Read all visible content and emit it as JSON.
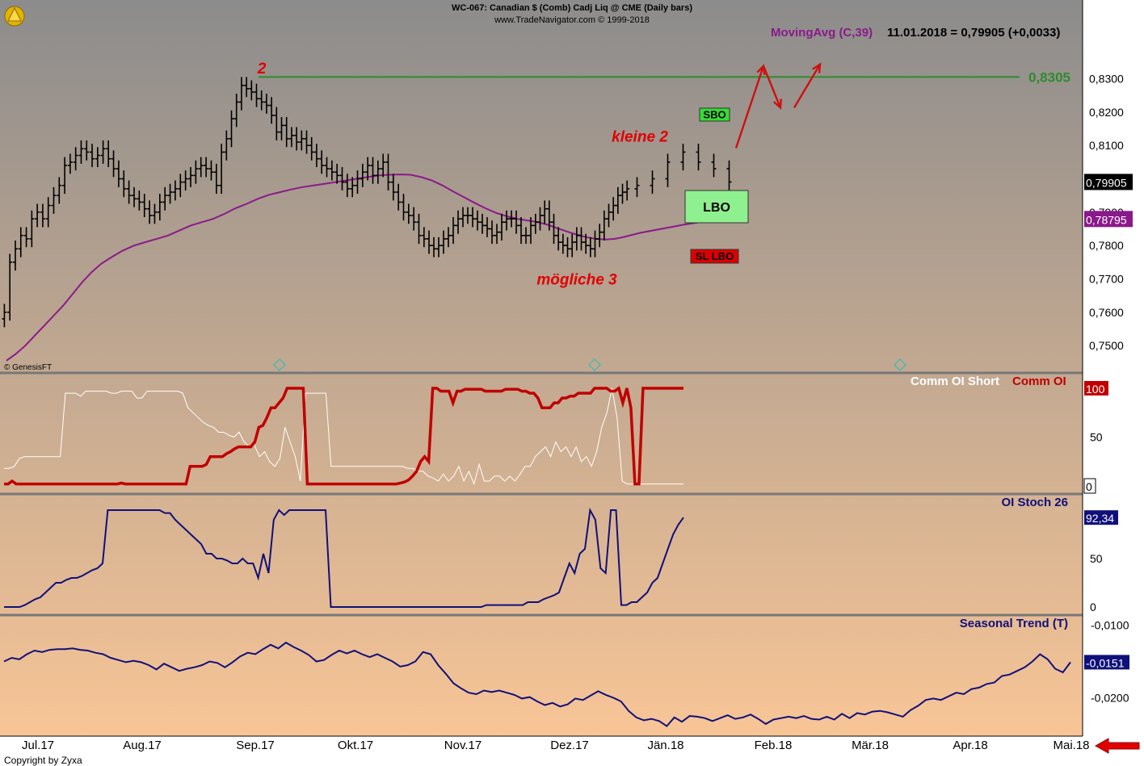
{
  "header": {
    "line1": "WC-067:  Canadian $ (Comb) Cadj Liq @ CME  (Daily bars)",
    "line2": "www.TradeNavigator.com © 1999-2018"
  },
  "footer": {
    "copyright": "Copyright by Zyxa",
    "genesis": "© GenesisFT"
  },
  "colors": {
    "bg_top": "#8c8c8c",
    "bg_bottom": "#f8c596",
    "grid_separator": "#787878",
    "ma_line": "#8a1a8a",
    "resistance_line": "#2e8b2e",
    "comm_oi": "#c00000",
    "comm_oi_short": "#ffffff",
    "oi_stoch": "#10107a",
    "seasonal": "#10107a",
    "annotation_red": "#e00000",
    "sbo_green": "#33dd33",
    "lbo_green": "#8ef08e",
    "sl_red": "#dd0000",
    "price_axis_label": "#000000"
  },
  "chart_data": [
    {
      "type": "ohlc",
      "title": "WC-067:  Canadian $ (Comb) Cadj Liq @ CME  (Daily bars)",
      "xlabel": "",
      "ylabel": "",
      "x_tick_labels": [
        "Jul.17",
        "Aug.17",
        "Sep.17",
        "Okt.17",
        "Nov.17",
        "Dez.17",
        "Jän.18",
        "Feb.18",
        "Mär.18",
        "Apr.18",
        "Mai.18"
      ],
      "y_tick_labels": [
        "0,8300",
        "0,8200",
        "0,8100",
        "0,8000",
        "0,7900",
        "0,7800",
        "0,7700",
        "0,7600",
        "0,7500"
      ],
      "ylim": [
        0.7423,
        0.8427
      ],
      "note_price_box": "0,79905",
      "ma_box": "0,78795",
      "legend": "MovingAvg (C,39)",
      "readout": "11.01.2018 = 0,79905 (+0,0033)",
      "level_label": "0,8305",
      "level_value": 0.8305,
      "price_series": [
        {
          "month": "Jul.17",
          "values": [
            0.76,
            0.775,
            0.779,
            0.783,
            0.782,
            0.788,
            0.79,
            0.788,
            0.792,
            0.795,
            0.798,
            0.804,
            0.805,
            0.807,
            0.809,
            0.808,
            0.806,
            0.807,
            0.809
          ]
        },
        {
          "month": "Aug.17",
          "values": [
            0.806,
            0.803,
            0.8,
            0.797,
            0.795,
            0.794,
            0.793,
            0.791,
            0.789,
            0.79,
            0.793,
            0.795,
            0.796,
            0.797,
            0.799,
            0.8,
            0.801,
            0.803,
            0.804,
            0.803,
            0.802,
            0.798
          ]
        },
        {
          "month": "Sep.17",
          "values": [
            0.808,
            0.812,
            0.818,
            0.823,
            0.828,
            0.827,
            0.826,
            0.824,
            0.823,
            0.822,
            0.819,
            0.814,
            0.816,
            0.812,
            0.813,
            0.811,
            0.812,
            0.81,
            0.808,
            0.806
          ]
        },
        {
          "month": "Okt.17",
          "values": [
            0.804,
            0.803,
            0.802,
            0.801,
            0.799,
            0.797,
            0.798,
            0.8,
            0.802,
            0.804,
            0.801,
            0.803,
            0.805,
            0.799,
            0.796,
            0.793,
            0.79,
            0.789,
            0.787,
            0.783,
            0.782
          ]
        },
        {
          "month": "Nov.17",
          "values": [
            0.78,
            0.779,
            0.78,
            0.782,
            0.783,
            0.786,
            0.788,
            0.789,
            0.789,
            0.788,
            0.787,
            0.786,
            0.785,
            0.783,
            0.784,
            0.787,
            0.788,
            0.788,
            0.786,
            0.783,
            0.783,
            0.786
          ]
        },
        {
          "month": "Dez.17",
          "values": [
            0.787,
            0.789,
            0.791,
            0.787,
            0.783,
            0.781,
            0.78,
            0.779,
            0.781,
            0.783,
            0.781,
            0.78,
            0.779,
            0.782,
            0.784,
            0.788,
            0.79,
            0.792,
            0.795,
            0.796,
            0.797
          ]
        },
        {
          "month": "Jän.18",
          "values": [
            0.798,
            0.8,
            0.805,
            0.808,
            0.805,
            0.803,
            0.79905
          ]
        }
      ],
      "ma_series": [
        {
          "month": "Jul.17",
          "values": [
            0.7455,
            0.7475,
            0.75,
            0.753,
            0.756,
            0.759,
            0.762,
            0.7655,
            0.769,
            0.772,
            0.7745
          ]
        },
        {
          "month": "Aug.17",
          "values": [
            0.7765,
            0.7785,
            0.78,
            0.781,
            0.782,
            0.783,
            0.7845,
            0.786,
            0.787,
            0.788
          ]
        },
        {
          "month": "Sep.17",
          "values": [
            0.7895,
            0.7912,
            0.7925,
            0.794,
            0.7952,
            0.796,
            0.7968,
            0.7975,
            0.798
          ]
        },
        {
          "month": "Okt.17",
          "values": [
            0.7985,
            0.799,
            0.7995,
            0.8,
            0.8005,
            0.801,
            0.8012,
            0.8013,
            0.8012,
            0.8005
          ]
        },
        {
          "month": "Nov.17",
          "values": [
            0.7995,
            0.798,
            0.7962,
            0.7945,
            0.7928,
            0.7912,
            0.7898,
            0.7888,
            0.788,
            0.7875
          ]
        },
        {
          "month": "Dez.17",
          "values": [
            0.787,
            0.7862,
            0.7852,
            0.7842,
            0.7833,
            0.7825,
            0.782,
            0.7818,
            0.782,
            0.7826
          ]
        },
        {
          "month": "Jän.18",
          "values": [
            0.7838,
            0.785,
            0.7862,
            0.7872,
            0.78795
          ]
        }
      ],
      "annotations": [
        {
          "text": "2",
          "month": "Sep.17",
          "price": 0.8333
        },
        {
          "text": "kleine 2",
          "month": "Dez.17",
          "price": 0.8128
        },
        {
          "text": "mögliche 3",
          "month": "Dez.17",
          "price": 0.77
        }
      ],
      "boxes": [
        {
          "text": "SBO",
          "kind": "sbo"
        },
        {
          "text": "LBO",
          "kind": "lbo"
        },
        {
          "text": "SL LBO",
          "kind": "sl"
        }
      ],
      "projection_points": [
        {
          "month": "Jän.18",
          "price": 0.8092
        },
        {
          "month": "Feb.18",
          "price": 0.8338
        },
        {
          "month": "Feb.18",
          "price": 0.8213
        },
        {
          "month": "Feb.18",
          "price": 0.8343
        }
      ]
    },
    {
      "type": "line",
      "title": "",
      "legend": [
        "Comm OI Short",
        "Comm OI"
      ],
      "y_tick_labels": [
        "100",
        "50",
        "0"
      ],
      "ylim": [
        0,
        100
      ],
      "value_boxes": [
        "100",
        "0"
      ],
      "series": [
        {
          "name": "Comm OI Short",
          "values": [
            18,
            18,
            20,
            28,
            30,
            30,
            30,
            30,
            30,
            30,
            30,
            30,
            95,
            95,
            95,
            92,
            97,
            97,
            97,
            97,
            97,
            95,
            95,
            97,
            97,
            97,
            90,
            90,
            97,
            97,
            97,
            97,
            97,
            97,
            97,
            95,
            80,
            75,
            70,
            65,
            62,
            60,
            55,
            55,
            52,
            50,
            55,
            45,
            40,
            42,
            30,
            35,
            25,
            20,
            28,
            60,
            45,
            30,
            5,
            95,
            95,
            95,
            95,
            95,
            20,
            20,
            20,
            20,
            20,
            20,
            20,
            20,
            20,
            20,
            20,
            20,
            20,
            20,
            20,
            18,
            18,
            15,
            15,
            10,
            8,
            5,
            12,
            5,
            10,
            20,
            5,
            15,
            2,
            22,
            5,
            5,
            10,
            10,
            5,
            10,
            5,
            12,
            20,
            20,
            30,
            35,
            40,
            30,
            45,
            35,
            40,
            30,
            40,
            25,
            30,
            20,
            35,
            60,
            75,
            100,
            70,
            5,
            2,
            2,
            2,
            2,
            2,
            2,
            2,
            2,
            2,
            2,
            2,
            2
          ]
        },
        {
          "name": "Comm OI",
          "values": [
            2,
            2,
            5,
            2,
            2,
            2,
            2,
            2,
            2,
            2,
            2,
            2,
            2,
            2,
            2,
            2,
            2,
            2,
            2,
            2,
            2,
            2,
            2,
            2,
            2,
            2,
            2,
            2,
            2,
            3,
            2,
            2,
            2,
            2,
            2,
            2,
            2,
            2,
            2,
            2,
            2,
            2,
            2,
            2,
            2,
            2,
            20,
            20,
            20,
            20,
            22,
            30,
            30,
            30,
            30,
            33,
            35,
            38,
            40,
            40,
            40,
            40,
            45,
            60,
            62,
            70,
            80,
            80,
            85,
            90,
            100,
            100,
            100,
            100,
            100,
            2,
            2,
            2,
            2,
            2,
            2,
            2,
            2,
            2,
            2,
            2,
            2,
            2,
            2,
            2,
            2,
            2,
            2,
            2,
            2,
            2,
            2,
            2,
            3,
            4,
            6,
            10,
            15,
            25,
            30,
            25,
            100,
            100,
            97,
            97,
            97,
            85,
            97,
            97,
            99,
            99,
            99,
            99,
            99,
            97,
            97,
            97,
            97,
            97,
            99,
            99,
            99,
            99,
            97,
            97,
            95,
            95,
            90,
            80,
            80,
            80,
            85,
            85,
            90,
            90,
            92,
            92,
            95,
            95,
            95,
            95,
            100,
            100,
            100,
            100,
            97,
            97,
            100,
            85,
            100,
            80,
            2,
            2,
            100,
            100,
            100,
            100,
            100,
            100,
            100,
            100,
            100,
            100,
            100
          ]
        }
      ]
    },
    {
      "type": "line",
      "title": "",
      "legend": [
        "OI Stoch 26"
      ],
      "y_tick_labels": [
        "50",
        "0"
      ],
      "ylim": [
        0,
        100
      ],
      "value_box": "92,34",
      "series": [
        {
          "name": "OI Stoch 26",
          "values": [
            0,
            0,
            0,
            0,
            2,
            5,
            8,
            10,
            15,
            20,
            25,
            25,
            28,
            30,
            30,
            32,
            35,
            38,
            40,
            45,
            100,
            100,
            100,
            100,
            100,
            100,
            100,
            100,
            100,
            100,
            100,
            97,
            97,
            90,
            85,
            80,
            75,
            70,
            65,
            55,
            55,
            50,
            50,
            48,
            45,
            45,
            50,
            45,
            45,
            30,
            55,
            35,
            90,
            100,
            95,
            100,
            100,
            100,
            100,
            100,
            100,
            100,
            100,
            0,
            0,
            0,
            0,
            0,
            0,
            0,
            0,
            0,
            0,
            0,
            0,
            0,
            0,
            0,
            0,
            0,
            0,
            0,
            0,
            0,
            0,
            0,
            0,
            0,
            0,
            0,
            0,
            0,
            0,
            2,
            2,
            2,
            2,
            2,
            2,
            2,
            2,
            5,
            5,
            5,
            8,
            10,
            12,
            15,
            30,
            45,
            35,
            55,
            60,
            100,
            90,
            40,
            35,
            100,
            100,
            2,
            2,
            5,
            5,
            10,
            15,
            25,
            30,
            45,
            60,
            75,
            85,
            92.34
          ]
        }
      ]
    },
    {
      "type": "line",
      "title": "",
      "legend": [
        "Seasonal Trend (T)"
      ],
      "y_tick_labels": [
        "-0,0100",
        "-0,0200"
      ],
      "ylim": [
        -0.0245,
        -0.0095
      ],
      "value_box": "-0,0151",
      "series": [
        {
          "name": "Seasonal Trend (T)",
          "values": [
            -0.015,
            -0.0145,
            -0.0147,
            -0.014,
            -0.0135,
            -0.0137,
            -0.0134,
            -0.0133,
            -0.0133,
            -0.0132,
            -0.0134,
            -0.0135,
            -0.0138,
            -0.014,
            -0.0145,
            -0.0148,
            -0.0151,
            -0.0149,
            -0.0151,
            -0.0155,
            -0.0161,
            -0.0153,
            -0.0158,
            -0.0163,
            -0.016,
            -0.0158,
            -0.0155,
            -0.015,
            -0.0152,
            -0.0158,
            -0.0151,
            -0.0143,
            -0.0138,
            -0.014,
            -0.0133,
            -0.0127,
            -0.0132,
            -0.0124,
            -0.013,
            -0.0135,
            -0.0141,
            -0.015,
            -0.0148,
            -0.0141,
            -0.0135,
            -0.0139,
            -0.0135,
            -0.014,
            -0.0144,
            -0.014,
            -0.0145,
            -0.015,
            -0.0157,
            -0.0155,
            -0.015,
            -0.0137,
            -0.014,
            -0.0155,
            -0.0167,
            -0.018,
            -0.0187,
            -0.0193,
            -0.0195,
            -0.019,
            -0.0192,
            -0.019,
            -0.0193,
            -0.0196,
            -0.0201,
            -0.0199,
            -0.0205,
            -0.021,
            -0.0207,
            -0.0212,
            -0.0209,
            -0.0201,
            -0.0203,
            -0.0197,
            -0.0191,
            -0.0196,
            -0.02,
            -0.0205,
            -0.0218,
            -0.0227,
            -0.0231,
            -0.0229,
            -0.0232,
            -0.0239,
            -0.0227,
            -0.0233,
            -0.0225,
            -0.0226,
            -0.0228,
            -0.0232,
            -0.0228,
            -0.0224,
            -0.0229,
            -0.0227,
            -0.0223,
            -0.0229,
            -0.0236,
            -0.023,
            -0.0228,
            -0.0226,
            -0.0228,
            -0.0225,
            -0.0229,
            -0.023,
            -0.0226,
            -0.023,
            -0.0222,
            -0.0228,
            -0.0221,
            -0.0223,
            -0.0219,
            -0.0218,
            -0.022,
            -0.0223,
            -0.0226,
            -0.0217,
            -0.0211,
            -0.0203,
            -0.0201,
            -0.0203,
            -0.0198,
            -0.0193,
            -0.0195,
            -0.0188,
            -0.0186,
            -0.0181,
            -0.0179,
            -0.017,
            -0.0168,
            -0.0163,
            -0.0158,
            -0.015,
            -0.014,
            -0.0147,
            -0.016,
            -0.0165,
            -0.0151
          ]
        }
      ]
    }
  ]
}
